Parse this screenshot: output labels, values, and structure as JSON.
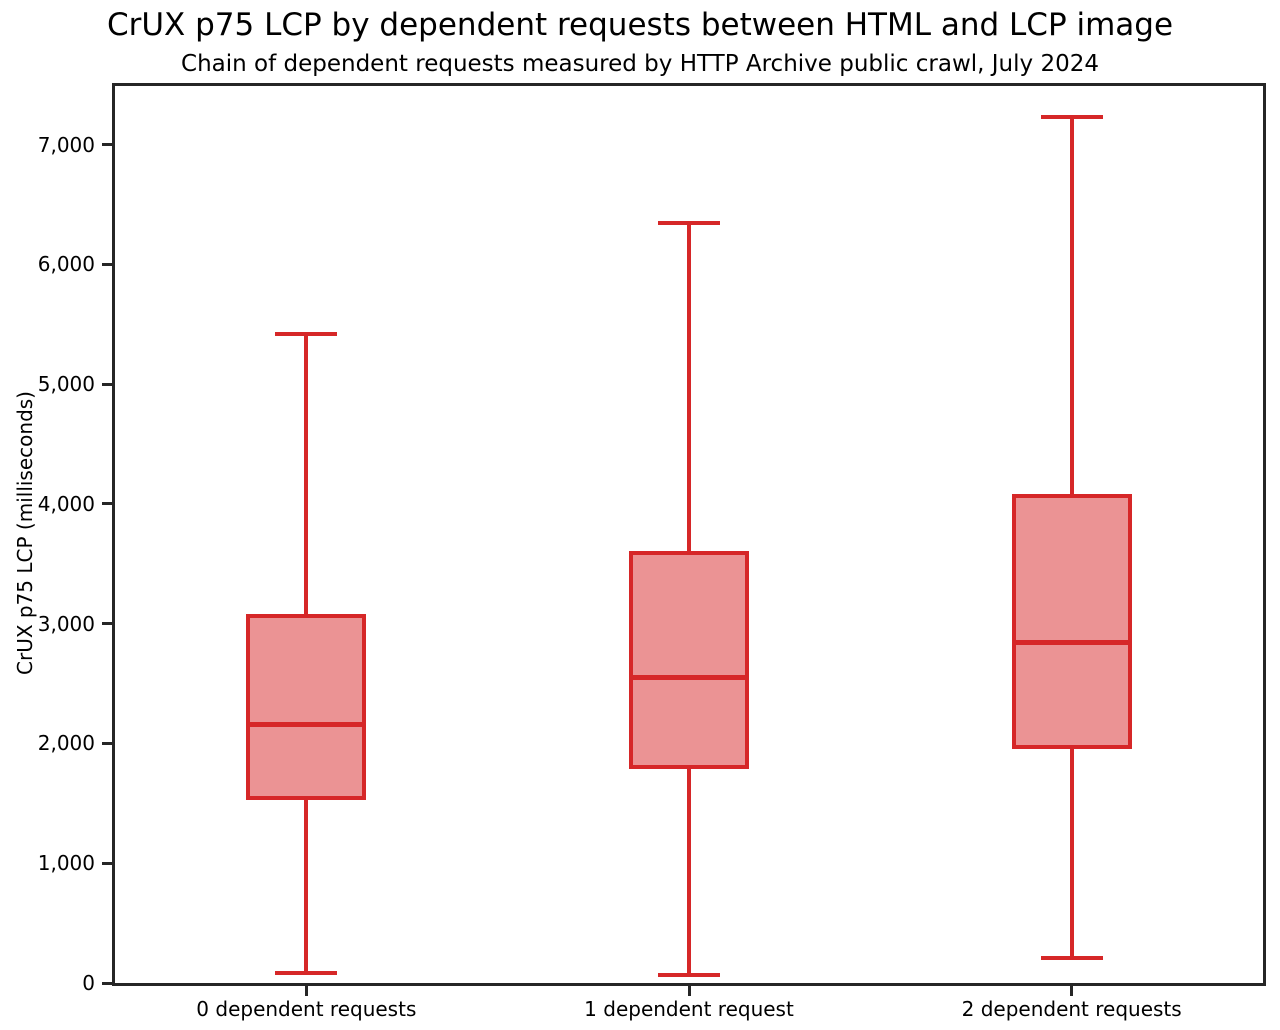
{
  "title": "CrUX p75 LCP by dependent requests between HTML and LCP image",
  "subtitle": "Chain of dependent requests measured by HTTP Archive public crawl, July 2024",
  "chart_data": {
    "type": "boxplot",
    "title": "CrUX p75 LCP by dependent requests between HTML and LCP image",
    "subtitle": "Chain of dependent requests measured by HTTP Archive public crawl, July 2024",
    "xlabel": "",
    "ylabel": "CrUX p75 LCP (milliseconds)",
    "ylim": [
      0,
      7490
    ],
    "yticks": [
      0,
      1000,
      2000,
      3000,
      4000,
      5000,
      6000,
      7000
    ],
    "ytick_labels": [
      "0",
      "1,000",
      "2,000",
      "3,000",
      "4,000",
      "5,000",
      "6,000",
      "7,000"
    ],
    "categories": [
      "0 dependent requests",
      "1 dependent request",
      "2 dependent requests"
    ],
    "series": [
      {
        "category": "0 dependent requests",
        "whisker_low": 80,
        "q1": 1530,
        "median": 2160,
        "q3": 3080,
        "whisker_high": 5420
      },
      {
        "category": "1 dependent request",
        "whisker_low": 70,
        "q1": 1790,
        "median": 2550,
        "q3": 3610,
        "whisker_high": 6350
      },
      {
        "category": "2 dependent requests",
        "whisker_low": 210,
        "q1": 1950,
        "median": 2840,
        "q3": 4080,
        "whisker_high": 7230
      }
    ],
    "grid": false,
    "legend": null,
    "colors": {
      "box_edge": "#D62728",
      "box_fill": "#EB9394",
      "median": "#D62728",
      "whisker": "#D62728",
      "spine": "#262626",
      "text": "#000000",
      "background": "#FFFFFF"
    }
  }
}
